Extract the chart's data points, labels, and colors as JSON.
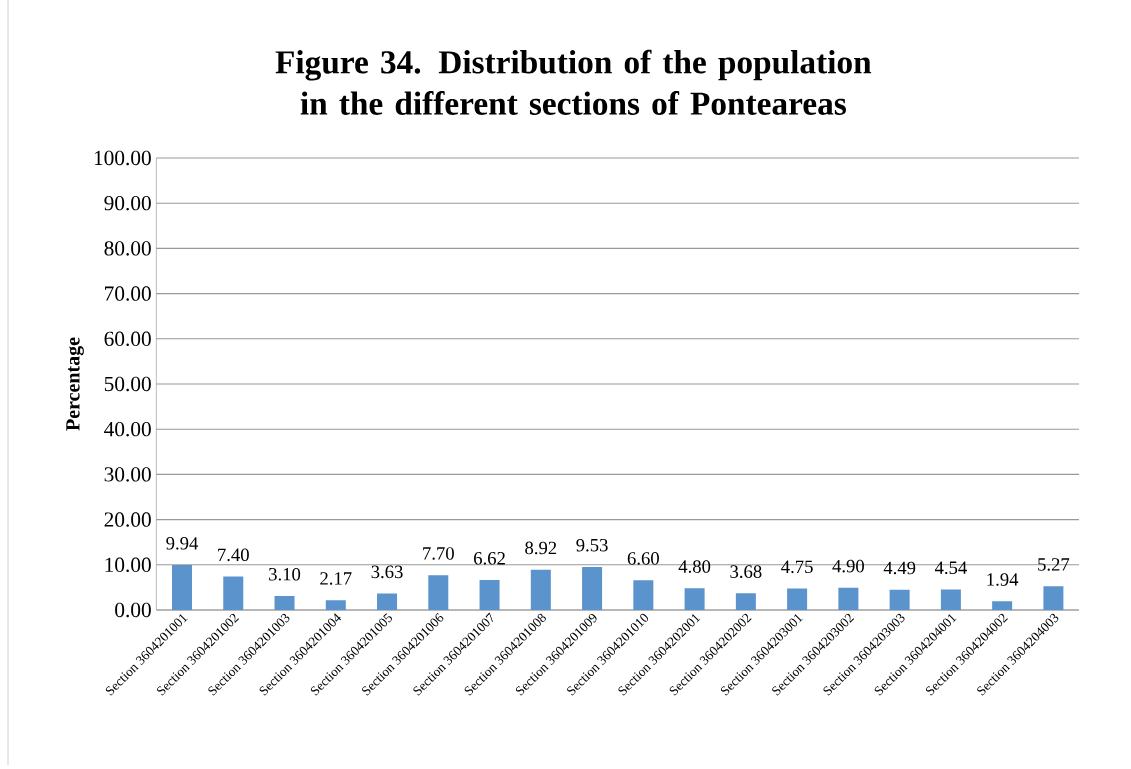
{
  "chart_data": {
    "type": "bar",
    "title": "Figure 34. Distribution of the population in the different sections of Ponteareas",
    "ylabel": "Percentage",
    "categories": [
      "Section 3604201001",
      "Section 3604201002",
      "Section 3604201003",
      "Section 3604201004",
      "Section 3604201005",
      "Section 3604201006",
      "Section 3604201007",
      "Section 3604201008",
      "Section 3604201009",
      "Section 3604201010",
      "Section 3604202001",
      "Section 3604202002",
      "Section 3604203001",
      "Section 3604203002",
      "Section 3604203003",
      "Section 3604204001",
      "Section 3604204002",
      "Section 3604204003"
    ],
    "values": [
      9.94,
      7.4,
      3.1,
      2.17,
      3.63,
      7.7,
      6.62,
      8.92,
      9.53,
      6.6,
      4.8,
      3.68,
      4.75,
      4.9,
      4.49,
      4.54,
      1.94,
      5.27
    ],
    "value_labels": [
      "9.94",
      "7.40",
      "3.10",
      "2.17",
      "3.63",
      "7.70",
      "6.62",
      "8.92",
      "9.53",
      "6.60",
      "4.80",
      "3.68",
      "4.75",
      "4.90",
      "4.49",
      "4.54",
      "1.94",
      "5.27"
    ],
    "color": "#5b93cc",
    "ylim": [
      0,
      100
    ],
    "yticks": [
      {
        "value": 0,
        "label": "0.00"
      },
      {
        "value": 10,
        "label": "10.00"
      },
      {
        "value": 20,
        "label": "20.00"
      },
      {
        "value": 30,
        "label": "30.00"
      },
      {
        "value": 40,
        "label": "40.00"
      },
      {
        "value": 50,
        "label": "50.00"
      },
      {
        "value": 60,
        "label": "60.00"
      },
      {
        "value": 70,
        "label": "70.00"
      },
      {
        "value": 80,
        "label": "80.00"
      },
      {
        "value": 90,
        "label": "90.00"
      },
      {
        "value": 100,
        "label": "100.00"
      }
    ],
    "grid": "y"
  }
}
